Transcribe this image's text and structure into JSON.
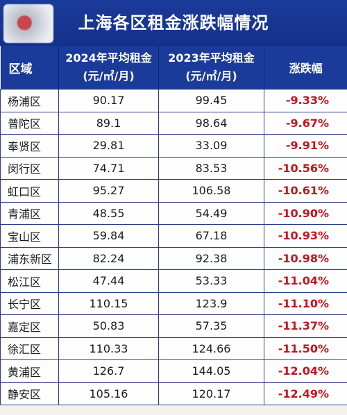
{
  "title": "上海各区租金涨跌幅情况",
  "headers": {
    "district": "区域",
    "rent_2024_line1": "2024年平均租金",
    "rent_2024_line2": "(元/㎡/月)",
    "rent_2023_line1": "2023年平均租金",
    "rent_2023_line2": "(元/㎡/月)",
    "change": "涨跌幅"
  },
  "rows": [
    {
      "district": "杨浦区",
      "rent_2024": "90.17",
      "rent_2023": "99.45",
      "change": "-9.33%"
    },
    {
      "district": "普陀区",
      "rent_2024": "89.1",
      "rent_2023": "98.64",
      "change": "-9.67%"
    },
    {
      "district": "奉贤区",
      "rent_2024": "29.81",
      "rent_2023": "33.09",
      "change": "-9.91%"
    },
    {
      "district": "闵行区",
      "rent_2024": "74.71",
      "rent_2023": "83.53",
      "change": "-10.56%"
    },
    {
      "district": "虹口区",
      "rent_2024": "95.27",
      "rent_2023": "106.58",
      "change": "-10.61%"
    },
    {
      "district": "青浦区",
      "rent_2024": "48.55",
      "rent_2023": "54.49",
      "change": "-10.90%"
    },
    {
      "district": "宝山区",
      "rent_2024": "59.84",
      "rent_2023": "67.18",
      "change": "-10.93%"
    },
    {
      "district": "浦东新区",
      "rent_2024": "82.24",
      "rent_2023": "92.38",
      "change": "-10.98%"
    },
    {
      "district": "松江区",
      "rent_2024": "47.44",
      "rent_2023": "53.33",
      "change": "-11.04%"
    },
    {
      "district": "长宁区",
      "rent_2024": "110.15",
      "rent_2023": "123.9",
      "change": "-11.10%"
    },
    {
      "district": "嘉定区",
      "rent_2024": "50.83",
      "rent_2023": "57.35",
      "change": "-11.37%"
    },
    {
      "district": "徐汇区",
      "rent_2024": "110.33",
      "rent_2023": "124.66",
      "change": "-11.50%"
    },
    {
      "district": "黄浦区",
      "rent_2024": "126.7",
      "rent_2023": "144.05",
      "change": "-12.04%"
    },
    {
      "district": "静安区",
      "rent_2024": "105.16",
      "rent_2023": "120.17",
      "change": "-12.49%"
    }
  ],
  "colors": {
    "header_bg": "#1b3b9a",
    "negative_change": "#c4141c"
  }
}
